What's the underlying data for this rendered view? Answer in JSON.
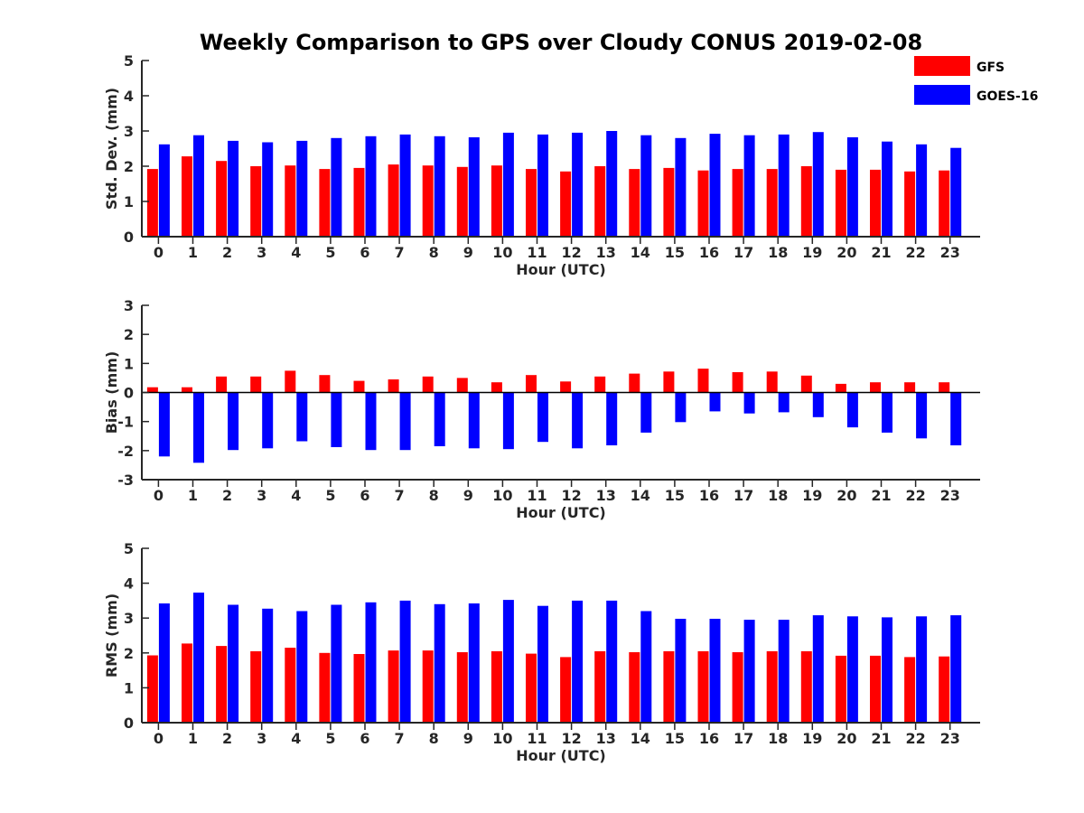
{
  "title": "Weekly Comparison to GPS over Cloudy CONUS 2019-02-08",
  "legend": {
    "position": "top-right",
    "items": [
      {
        "name": "GFS",
        "color": "#ff0000"
      },
      {
        "name": "GOES-16",
        "color": "#0000ff"
      }
    ]
  },
  "chart_data": [
    {
      "type": "bar",
      "xlabel": "Hour (UTC)",
      "ylabel": "Std. Dev. (mm)",
      "ylim": [
        0,
        5
      ],
      "yticks": [
        0,
        1,
        2,
        3,
        4,
        5
      ],
      "categories": [
        "0",
        "1",
        "2",
        "3",
        "4",
        "5",
        "6",
        "7",
        "8",
        "9",
        "10",
        "11",
        "12",
        "13",
        "14",
        "15",
        "16",
        "17",
        "18",
        "19",
        "20",
        "21",
        "22",
        "23"
      ],
      "series": [
        {
          "name": "GFS",
          "color": "#ff0000",
          "values": [
            1.92,
            2.28,
            2.15,
            2.0,
            2.02,
            1.92,
            1.95,
            2.05,
            2.02,
            1.98,
            2.02,
            1.92,
            1.85,
            2.0,
            1.92,
            1.95,
            1.88,
            1.92,
            1.92,
            2.0,
            1.9,
            1.9,
            1.85,
            1.88
          ]
        },
        {
          "name": "GOES-16",
          "color": "#0000ff",
          "values": [
            2.62,
            2.88,
            2.72,
            2.68,
            2.72,
            2.8,
            2.85,
            2.9,
            2.85,
            2.82,
            2.95,
            2.9,
            2.95,
            3.0,
            2.88,
            2.8,
            2.92,
            2.88,
            2.9,
            2.97,
            2.82,
            2.7,
            2.62,
            2.52
          ]
        }
      ]
    },
    {
      "type": "bar",
      "xlabel": "Hour (UTC)",
      "ylabel": "Bias (mm)",
      "ylim": [
        -3,
        3
      ],
      "yticks": [
        -3,
        -2,
        -1,
        0,
        1,
        2,
        3
      ],
      "categories": [
        "0",
        "1",
        "2",
        "3",
        "4",
        "5",
        "6",
        "7",
        "8",
        "9",
        "10",
        "11",
        "12",
        "13",
        "14",
        "15",
        "16",
        "17",
        "18",
        "19",
        "20",
        "21",
        "22",
        "23"
      ],
      "series": [
        {
          "name": "GFS",
          "color": "#ff0000",
          "values": [
            0.18,
            0.18,
            0.55,
            0.55,
            0.75,
            0.6,
            0.4,
            0.45,
            0.55,
            0.5,
            0.35,
            0.6,
            0.38,
            0.55,
            0.65,
            0.72,
            0.82,
            0.7,
            0.72,
            0.58,
            0.3,
            0.35,
            0.35,
            0.35
          ]
        },
        {
          "name": "GOES-16",
          "color": "#0000ff",
          "values": [
            -2.2,
            -2.42,
            -1.98,
            -1.92,
            -1.68,
            -1.88,
            -1.98,
            -1.98,
            -1.85,
            -1.92,
            -1.95,
            -1.7,
            -1.92,
            -1.82,
            -1.38,
            -1.02,
            -0.65,
            -0.72,
            -0.68,
            -0.85,
            -1.2,
            -1.38,
            -1.58,
            -1.82
          ]
        }
      ]
    },
    {
      "type": "bar",
      "xlabel": "Hour (UTC)",
      "ylabel": "RMS (mm)",
      "ylim": [
        0,
        5
      ],
      "yticks": [
        0,
        1,
        2,
        3,
        4,
        5
      ],
      "categories": [
        "0",
        "1",
        "2",
        "3",
        "4",
        "5",
        "6",
        "7",
        "8",
        "9",
        "10",
        "11",
        "12",
        "13",
        "14",
        "15",
        "16",
        "17",
        "18",
        "19",
        "20",
        "21",
        "22",
        "23"
      ],
      "series": [
        {
          "name": "GFS",
          "color": "#ff0000",
          "values": [
            1.93,
            2.27,
            2.2,
            2.05,
            2.15,
            2.0,
            1.97,
            2.07,
            2.07,
            2.02,
            2.05,
            1.98,
            1.88,
            2.05,
            2.02,
            2.05,
            2.05,
            2.02,
            2.05,
            2.05,
            1.92,
            1.92,
            1.88,
            1.9
          ]
        },
        {
          "name": "GOES-16",
          "color": "#0000ff",
          "values": [
            3.42,
            3.73,
            3.38,
            3.27,
            3.2,
            3.38,
            3.45,
            3.5,
            3.4,
            3.42,
            3.52,
            3.35,
            3.5,
            3.5,
            3.2,
            2.98,
            2.98,
            2.95,
            2.95,
            3.08,
            3.05,
            3.02,
            3.05,
            3.08
          ]
        }
      ]
    }
  ]
}
